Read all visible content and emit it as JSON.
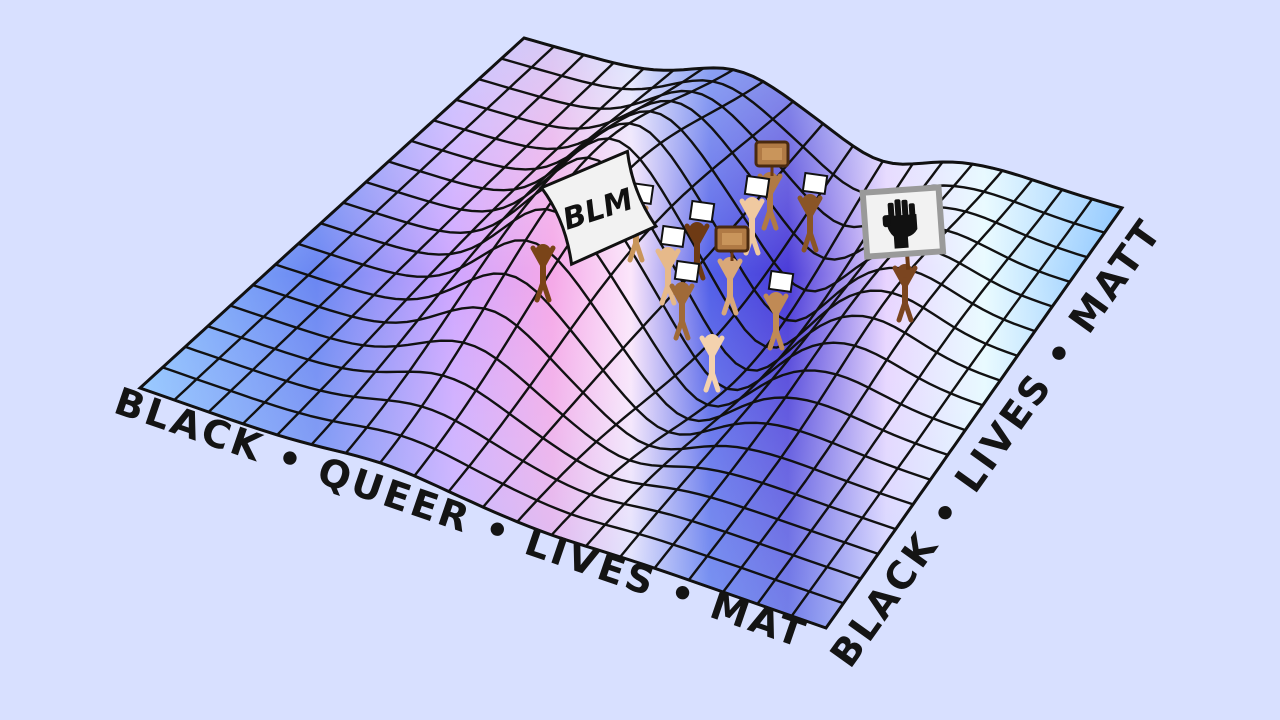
{
  "background_color": "#d8e0ff",
  "colors": {
    "grid_line": "#111111",
    "blue": "#5b78f0",
    "light_blue": "#9fd0ff",
    "cyan_white": "#e6fbff",
    "pink": "#f7a8e6",
    "lavender": "#dcc6ff",
    "deep_blue": "#4535d9"
  },
  "caption_front": "BLACK • QUEER • LIVES • MATTER •",
  "caption_right": "BLACK • LIVES • MATTER",
  "sign_text": "BLM",
  "fist_sign_icon": "raised-fist-icon",
  "protesters": [
    {
      "skin": "#7a4418",
      "sign": "blm-banner"
    },
    {
      "skin": "#c9955b",
      "sign": "placard"
    },
    {
      "skin": "#e6b98a",
      "sign": "placard"
    },
    {
      "skin": "#6e3a14",
      "sign": "placard"
    },
    {
      "skin": "#b07a45",
      "sign": "board"
    },
    {
      "skin": "#f0c9a0",
      "sign": "placard"
    },
    {
      "skin": "#8a5526",
      "sign": "placard"
    },
    {
      "skin": "#d9a878",
      "sign": "board"
    },
    {
      "skin": "#f4d2ae",
      "sign": "none"
    },
    {
      "skin": "#a06a38",
      "sign": "placard"
    },
    {
      "skin": "#7b4520",
      "sign": "fist-sign"
    },
    {
      "skin": "#c08a55",
      "sign": "placard"
    }
  ]
}
